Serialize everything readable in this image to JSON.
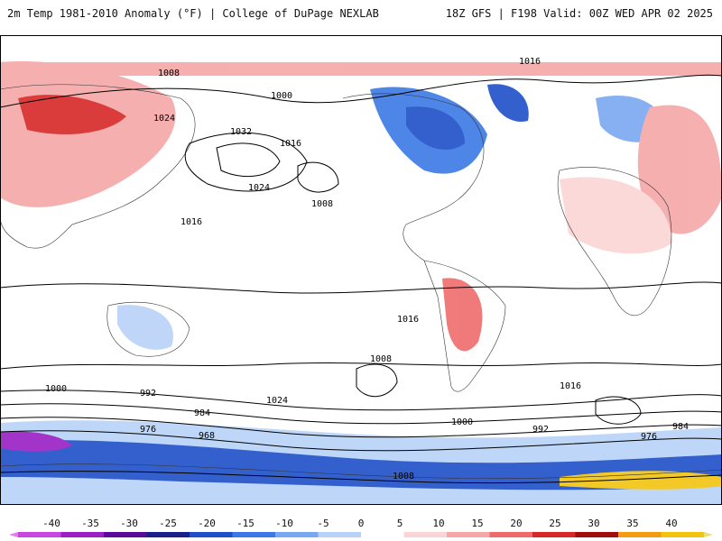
{
  "header": {
    "title": "2m Temp 1981-2010 Anomaly (°F) | College of DuPage NEXLAB",
    "run_info": "18Z GFS | F198 Valid: 00Z WED APR 02 2025"
  },
  "map": {
    "variable": "2m Temp 1981-2010 Anomaly",
    "units": "°F",
    "model": "GFS",
    "run": "18Z",
    "forecast_hour": "F198",
    "valid": "00Z WED APR 02 2025",
    "isobar_labels": [
      "1016",
      "1008",
      "1000",
      "1024",
      "1032",
      "1016",
      "1008",
      "1024",
      "1016",
      "1000",
      "992",
      "984",
      "976",
      "968",
      "1016",
      "1008",
      "1000",
      "992",
      "984",
      "976",
      "1024",
      "1008",
      "1016"
    ]
  },
  "colorbar": {
    "ticks": [
      "-40",
      "-35",
      "-30",
      "-25",
      "-20",
      "-15",
      "-10",
      "-5",
      "0",
      "5",
      "10",
      "15",
      "20",
      "25",
      "30",
      "35",
      "40"
    ],
    "colors": [
      "#e07ee6",
      "#c847e0",
      "#9a1fc4",
      "#5a0b9a",
      "#1a1f8a",
      "#1f4fc9",
      "#3b7ae6",
      "#7aa8f0",
      "#b8d2f7",
      "#ffffff",
      "#fbd5d5",
      "#f6a7a7",
      "#ef6b6b",
      "#d62828",
      "#a00d0d",
      "#f39c12",
      "#f1c40f",
      "#e9e07a"
    ]
  }
}
